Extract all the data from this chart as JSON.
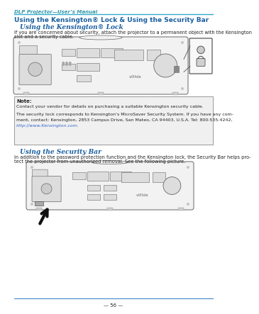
{
  "page_bg": "#ffffff",
  "header_text": "DLP Projector—User’s Manual",
  "header_color": "#3399aa",
  "header_line_color": "#33aacc",
  "main_title": "Using the Kensington® Lock & Using the Security Bar",
  "main_title_color": "#1a5fa0",
  "section1_title": "Using the Kensington® Lock",
  "section1_title_color": "#1a5fa0",
  "section1_body1": "If you are concerned about security, attach the projector to a permanent object with the Kensington",
  "section1_body2": "slot and a security cable.",
  "note_title": "Note:",
  "note_line1": "Contact your vendor for details on purchasing a suitable Kensington security cable.",
  "note_line2": "The security lock corresponds to Kensington’s MicroSaver Security System. If you have any com-",
  "note_line3": "ment, contact: Kensington, 2853 Campus Drive, San Mateo, CA 94403, U.S.A. Tel: 800-535-4242,",
  "note_link": "http://www.Kensington.com.",
  "section2_title": "Using the Security Bar",
  "section2_title_color": "#1a5fa0",
  "section2_body1": "In addition to the password protection function and the Kensington lock, the Security Bar helps pro-",
  "section2_body2": "tect the projector from unauthorized removal. See the following picture.",
  "footer_text": "— 56 —",
  "footer_line_color": "#4488cc",
  "text_color": "#222222",
  "note_bg": "#f0f0f0",
  "note_border": "#999999",
  "proj_body": "#f2f2f2",
  "proj_edge": "#666666",
  "proj_detail": "#dddddd",
  "proj_dark": "#aaaaaa"
}
